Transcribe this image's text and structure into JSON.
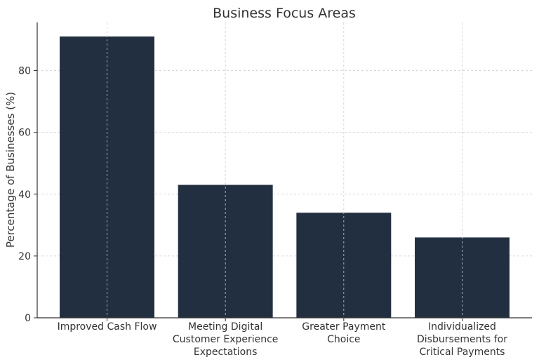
{
  "chart_data": {
    "type": "bar",
    "title": "Business Focus Areas",
    "xlabel": "",
    "ylabel": "Percentage of Businesses (%)",
    "categories": [
      [
        "Improved Cash Flow"
      ],
      [
        "Meeting Digital",
        "Customer Experience",
        "Expectations"
      ],
      [
        "Greater Payment",
        "Choice"
      ],
      [
        "Individualized",
        "Disbursements for",
        "Critical Payments"
      ]
    ],
    "values": [
      91,
      43,
      34,
      26
    ],
    "ylim": [
      0,
      95.55
    ],
    "yticks": [
      0,
      20,
      40,
      60,
      80
    ],
    "grid": true,
    "bar_color": "#222f40"
  }
}
